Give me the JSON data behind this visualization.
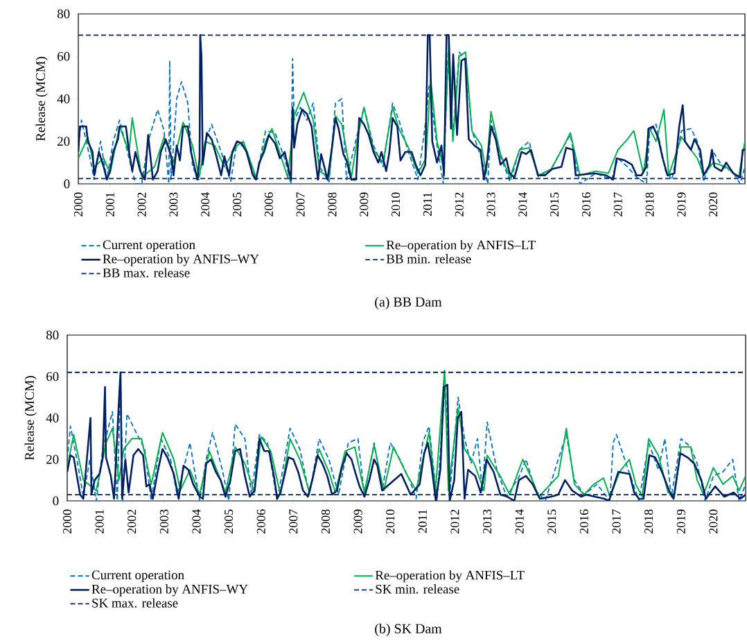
{
  "chart_data": [
    {
      "type": "line",
      "title": "(a) BB Dam",
      "ylabel": "Release (MCM)",
      "xlim": [
        2000,
        2021
      ],
      "ylim": [
        0,
        80
      ],
      "xticks": [
        2000,
        2001,
        2002,
        2003,
        2004,
        2005,
        2006,
        2007,
        2008,
        2009,
        2010,
        2011,
        2012,
        2013,
        2014,
        2015,
        2016,
        2017,
        2018,
        2019,
        2020
      ],
      "yticks": [
        0,
        20,
        40,
        60,
        80
      ],
      "legend": "bottom",
      "grid": false,
      "series": [
        {
          "name": "Current operation",
          "color": "#0070c0",
          "line_style": "dashed",
          "x": [
            2000,
            2000.1,
            2000.4,
            2000.5,
            2000.7,
            2000.9,
            2001.1,
            2001.3,
            2001.6,
            2001.8,
            2002.0,
            2002.2,
            2002.5,
            2002.7,
            2002.85,
            2002.88,
            2002.92,
            2003.1,
            2003.25,
            2003.45,
            2003.6,
            2003.8,
            2004.0,
            2004.2,
            2004.5,
            2004.8,
            2005.0,
            2005.3,
            2005.6,
            2005.9,
            2006.2,
            2006.5,
            2006.7,
            2006.75,
            2006.8,
            2007.0,
            2007.2,
            2007.4,
            2007.6,
            2007.9,
            2008.1,
            2008.3,
            2008.45,
            2008.8,
            2009.0,
            2009.3,
            2009.6,
            2009.9,
            2010.1,
            2010.4,
            2010.7,
            2010.95,
            2011.05,
            2011.3,
            2011.5,
            2011.65,
            2011.8,
            2012.0,
            2012.2,
            2012.4,
            2012.7,
            2012.9,
            2013.0,
            2013.3,
            2013.6,
            2013.9,
            2014.2,
            2014.5,
            2014.9,
            2015.3,
            2015.5,
            2015.8,
            2016.3,
            2016.8,
            2017.0,
            2017.3,
            2017.6,
            2017.9,
            2018.0,
            2018.2,
            2018.5,
            2018.7,
            2019.0,
            2019.3,
            2019.5,
            2019.7,
            2020.0,
            2020.3,
            2020.6,
            2020.85,
            2021.0
          ],
          "values": [
            18,
            30,
            10,
            2,
            20,
            2,
            20,
            30,
            12,
            0,
            0,
            20,
            35,
            25,
            0,
            58,
            2,
            40,
            48,
            38,
            8,
            2,
            20,
            28,
            15,
            1,
            20,
            16,
            2,
            25,
            24,
            12,
            0,
            59,
            30,
            36,
            30,
            38,
            8,
            1,
            38,
            40,
            2,
            24,
            36,
            18,
            8,
            38,
            30,
            15,
            2,
            30,
            46,
            18,
            0,
            62,
            22,
            62,
            58,
            25,
            12,
            0,
            30,
            13,
            1,
            16,
            20,
            3,
            7,
            18,
            23,
            0,
            5,
            2,
            12,
            8,
            3,
            0,
            25,
            28,
            6,
            2,
            25,
            26,
            20,
            1,
            15,
            8,
            6,
            0,
            8
          ]
        },
        {
          "name": "Re–operation by ANFIS–LT",
          "color": "#00b050",
          "line_style": "solid",
          "x": [
            2000,
            2000.3,
            2000.5,
            2000.8,
            2001.0,
            2001.3,
            2001.6,
            2001.7,
            2002.0,
            2002.4,
            2002.7,
            2003.0,
            2003.3,
            2003.6,
            2003.8,
            2004.0,
            2004.3,
            2004.6,
            2005.0,
            2005.2,
            2005.6,
            2005.9,
            2006.1,
            2006.4,
            2006.6,
            2006.8,
            2007.1,
            2007.4,
            2007.6,
            2007.9,
            2008.1,
            2008.3,
            2008.6,
            2008.8,
            2009.0,
            2009.3,
            2009.6,
            2009.9,
            2010.1,
            2010.4,
            2010.7,
            2010.95,
            2011.1,
            2011.3,
            2011.5,
            2011.68,
            2011.8,
            2012.0,
            2012.2,
            2012.4,
            2012.7,
            2012.85,
            2013.0,
            2013.3,
            2013.6,
            2013.9,
            2014.2,
            2014.5,
            2014.9,
            2015.3,
            2015.5,
            2015.8,
            2016.3,
            2016.7,
            2017.0,
            2017.3,
            2017.5,
            2017.8,
            2018.0,
            2018.2,
            2018.45,
            2018.6,
            2019.0,
            2019.2,
            2019.5,
            2019.7,
            2020.0,
            2020.4,
            2020.8,
            2021.0
          ],
          "values": [
            12,
            22,
            8,
            12,
            5,
            27,
            15,
            31,
            3,
            8,
            22,
            10,
            29,
            18,
            3,
            20,
            18,
            8,
            18,
            20,
            3,
            20,
            26,
            12,
            3,
            32,
            43,
            30,
            6,
            3,
            32,
            28,
            3,
            22,
            36,
            16,
            10,
            36,
            26,
            17,
            5,
            12,
            49,
            20,
            8,
            67,
            20,
            60,
            62,
            25,
            18,
            5,
            34,
            14,
            3,
            16,
            17,
            4,
            7,
            18,
            24,
            4,
            6,
            5,
            16,
            21,
            25,
            5,
            26,
            20,
            35,
            4,
            22,
            18,
            12,
            4,
            10,
            8,
            3,
            20
          ]
        },
        {
          "name": "Re–operation by ANFIS–WY",
          "color": "#002060",
          "line_style": "solid",
          "x": [
            2000.0,
            2000.05,
            2000.25,
            2000.3,
            2000.45,
            2000.5,
            2000.65,
            2000.8,
            2000.9,
            2001.0,
            2001.1,
            2001.25,
            2001.3,
            2001.5,
            2001.6,
            2001.7,
            2001.8,
            2001.95,
            2002.1,
            2002.2,
            2002.35,
            2002.5,
            2002.6,
            2002.75,
            2002.85,
            2002.95,
            2003.0,
            2003.1,
            2003.2,
            2003.3,
            2003.45,
            2003.55,
            2003.75,
            2003.82,
            2003.84,
            2003.88,
            2003.92,
            2004.05,
            2004.2,
            2004.35,
            2004.5,
            2004.6,
            2004.75,
            2004.85,
            2005.0,
            2005.15,
            2005.3,
            2005.5,
            2005.6,
            2005.7,
            2005.85,
            2006.0,
            2006.2,
            2006.35,
            2006.5,
            2006.7,
            2006.75,
            2006.8,
            2006.9,
            2007.05,
            2007.2,
            2007.35,
            2007.45,
            2007.55,
            2007.65,
            2007.85,
            2008.0,
            2008.1,
            2008.2,
            2008.35,
            2008.45,
            2008.6,
            2008.75,
            2008.85,
            2009.0,
            2009.15,
            2009.3,
            2009.45,
            2009.55,
            2009.7,
            2009.8,
            2009.9,
            2010.05,
            2010.15,
            2010.3,
            2010.5,
            2010.63,
            2010.78,
            2010.93,
            2011.01,
            2011.07,
            2011.15,
            2011.3,
            2011.44,
            2011.52,
            2011.6,
            2011.67,
            2011.74,
            2011.81,
            2011.93,
            2012.07,
            2012.19,
            2012.3,
            2012.48,
            2012.67,
            2012.78,
            2012.89,
            2013.0,
            2013.15,
            2013.3,
            2013.48,
            2013.59,
            2013.74,
            2013.96,
            2014.11,
            2014.26,
            2014.48,
            2014.7,
            2014.93,
            2015.22,
            2015.37,
            2015.59,
            2015.67,
            2016.26,
            2016.63,
            2016.85,
            2016.96,
            2017.22,
            2017.44,
            2017.59,
            2017.74,
            2017.89,
            2017.96,
            2018.11,
            2018.26,
            2018.41,
            2018.56,
            2018.78,
            2018.93,
            2019.04,
            2019.11,
            2019.3,
            2019.41,
            2019.59,
            2019.7,
            2019.89,
            2019.96,
            2020.04,
            2020.26,
            2020.41,
            2020.63,
            2020.85,
            2020.93,
            2021.0
          ],
          "values": [
            15,
            27,
            27,
            20,
            15,
            4,
            15,
            8,
            2,
            6,
            15,
            21,
            27,
            27,
            15,
            6,
            15,
            6,
            2,
            23,
            2,
            6,
            15,
            21,
            17,
            11,
            4,
            18,
            11,
            27,
            27,
            15,
            2,
            12,
            70,
            60,
            9,
            24,
            21,
            13,
            4,
            13,
            4,
            15,
            20,
            19,
            15,
            4,
            2,
            10,
            15,
            23,
            19,
            12,
            15,
            2,
            36,
            17,
            28,
            35,
            33,
            27,
            14,
            2,
            14,
            2,
            18,
            31,
            26,
            14,
            11,
            2,
            2,
            31,
            28,
            23,
            15,
            10,
            15,
            6,
            15,
            31,
            27,
            11,
            15,
            15,
            9,
            4,
            9,
            70,
            70,
            20,
            10,
            18,
            4,
            70,
            70,
            26,
            61,
            23,
            58,
            59,
            21,
            18,
            16,
            2,
            12,
            27,
            21,
            9,
            12,
            5,
            3,
            15,
            14,
            16,
            4,
            4,
            7,
            8,
            17,
            16,
            4,
            5,
            4,
            2,
            12,
            11,
            9,
            4,
            4,
            8,
            26,
            27,
            22,
            12,
            4,
            5,
            27,
            37,
            20,
            16,
            21,
            16,
            4,
            9,
            16,
            8,
            6,
            10,
            5,
            3,
            16,
            16
          ]
        },
        {
          "name": "BB min. release",
          "color": "#002060",
          "line_style": "dashed",
          "x": [
            2000,
            2021
          ],
          "values": [
            2.5,
            2.5
          ]
        },
        {
          "name": "BB max. release",
          "color": "#002060",
          "line_style": "dashed",
          "x": [
            2000,
            2021
          ],
          "values": [
            70,
            70
          ]
        }
      ]
    },
    {
      "type": "line",
      "title": "(b) SK Dam",
      "ylabel": "Release (MCM)",
      "xlim": [
        2000,
        2021
      ],
      "ylim": [
        0,
        80
      ],
      "xticks": [
        2000,
        2001,
        2002,
        2003,
        2004,
        2005,
        2006,
        2007,
        2008,
        2009,
        2010,
        2011,
        2012,
        2013,
        2014,
        2015,
        2016,
        2017,
        2018,
        2019,
        2020
      ],
      "yticks": [
        0,
        20,
        40,
        60,
        80
      ],
      "legend": "bottom",
      "grid": false,
      "series": [
        {
          "name": "Current operation",
          "color": "#0070c0",
          "line_style": "dashed",
          "x": [
            2000,
            2000.1,
            2000.3,
            2000.5,
            2000.7,
            2000.9,
            2001.1,
            2001.4,
            2001.55,
            2001.65,
            2001.72,
            2001.85,
            2002.1,
            2002.4,
            2002.6,
            2002.9,
            2003.2,
            2003.4,
            2003.8,
            2004.1,
            2004.3,
            2004.5,
            2004.8,
            2005.0,
            2005.2,
            2005.5,
            2005.7,
            2005.95,
            2006.2,
            2006.5,
            2006.9,
            2007.2,
            2007.5,
            2007.8,
            2008.1,
            2008.4,
            2008.7,
            2009.0,
            2009.2,
            2009.5,
            2009.75,
            2010.0,
            2010.3,
            2010.6,
            2010.8,
            2011.0,
            2011.2,
            2011.45,
            2011.7,
            2011.85,
            2012.1,
            2012.3,
            2012.5,
            2012.7,
            2012.85,
            2013.0,
            2013.3,
            2013.6,
            2014.0,
            2014.2,
            2014.5,
            2014.8,
            2015.2,
            2015.45,
            2015.7,
            2016.0,
            2016.4,
            2016.8,
            2016.9,
            2017.0,
            2017.3,
            2017.7,
            2018.0,
            2018.3,
            2018.5,
            2018.7,
            2019.0,
            2019.3,
            2019.5,
            2019.75,
            2020.0,
            2020.3,
            2020.6,
            2020.8,
            2021.0
          ],
          "values": [
            20,
            36,
            20,
            2,
            20,
            0,
            25,
            43,
            0,
            60,
            0,
            42,
            34,
            25,
            0,
            30,
            20,
            3,
            28,
            0,
            20,
            33,
            15,
            0,
            37,
            30,
            3,
            32,
            28,
            0,
            35,
            25,
            3,
            30,
            20,
            3,
            28,
            30,
            3,
            28,
            5,
            28,
            20,
            10,
            1,
            28,
            36,
            0,
            58,
            5,
            50,
            30,
            18,
            30,
            5,
            38,
            15,
            2,
            12,
            20,
            5,
            0,
            20,
            32,
            10,
            3,
            8,
            0,
            28,
            32,
            18,
            0,
            28,
            15,
            30,
            2,
            30,
            26,
            18,
            0,
            12,
            14,
            20,
            0,
            8
          ]
        },
        {
          "name": "Re–operation by ANFIS–LT",
          "color": "#00b050",
          "line_style": "solid",
          "x": [
            2000,
            2000.2,
            2000.5,
            2000.9,
            2001.2,
            2001.4,
            2001.6,
            2001.75,
            2002.0,
            2002.3,
            2002.6,
            2002.95,
            2003.3,
            2003.5,
            2003.8,
            2004.1,
            2004.4,
            2004.7,
            2004.9,
            2005.2,
            2005.5,
            2005.8,
            2006.0,
            2006.3,
            2006.6,
            2006.9,
            2007.2,
            2007.5,
            2007.8,
            2008.1,
            2008.3,
            2008.6,
            2008.9,
            2009.2,
            2009.5,
            2009.8,
            2010.1,
            2010.5,
            2010.8,
            2011.2,
            2011.4,
            2011.68,
            2011.8,
            2012.1,
            2012.3,
            2012.6,
            2012.9,
            2013.0,
            2013.4,
            2013.7,
            2014.1,
            2014.4,
            2014.6,
            2015.2,
            2015.45,
            2015.7,
            2016.0,
            2016.3,
            2016.6,
            2016.8,
            2017.1,
            2017.4,
            2017.6,
            2017.8,
            2018.0,
            2018.3,
            2018.6,
            2018.8,
            2019.0,
            2019.3,
            2019.5,
            2019.7,
            2020.0,
            2020.3,
            2020.6,
            2020.8,
            2021.0
          ],
          "values": [
            16,
            32,
            10,
            5,
            28,
            35,
            10,
            25,
            30,
            30,
            8,
            33,
            20,
            5,
            15,
            3,
            24,
            12,
            4,
            26,
            18,
            4,
            31,
            24,
            3,
            30,
            20,
            4,
            25,
            14,
            4,
            24,
            26,
            4,
            27,
            5,
            26,
            13,
            5,
            33,
            5,
            63,
            5,
            45,
            25,
            18,
            5,
            22,
            12,
            3,
            20,
            10,
            2,
            12,
            35,
            8,
            3,
            8,
            11,
            2,
            14,
            20,
            8,
            2,
            30,
            22,
            4,
            3,
            26,
            26,
            10,
            3,
            16,
            8,
            12,
            5,
            12
          ]
        },
        {
          "name": "Re–operation by ANFIS–WY",
          "color": "#002060",
          "line_style": "solid",
          "x": [
            2000.0,
            2000.1,
            2000.2,
            2000.3,
            2000.4,
            2000.5,
            2000.72,
            2000.75,
            2000.85,
            2001.0,
            2001.1,
            2001.17,
            2001.2,
            2001.35,
            2001.45,
            2001.62,
            2001.65,
            2001.7,
            2001.8,
            2001.9,
            2002.05,
            2002.2,
            2002.35,
            2002.45,
            2002.55,
            2002.65,
            2002.8,
            2002.95,
            2003.1,
            2003.3,
            2003.45,
            2003.6,
            2003.75,
            2003.9,
            2004.1,
            2004.2,
            2004.3,
            2004.45,
            2004.6,
            2004.75,
            2004.9,
            2005.05,
            2005.2,
            2005.35,
            2005.5,
            2005.65,
            2005.8,
            2005.95,
            2006.1,
            2006.25,
            2006.4,
            2006.5,
            2006.6,
            2006.75,
            2006.85,
            2007.0,
            2007.15,
            2007.3,
            2007.45,
            2007.6,
            2007.75,
            2007.9,
            2008.05,
            2008.2,
            2008.35,
            2008.5,
            2008.65,
            2008.8,
            2008.95,
            2009.05,
            2009.2,
            2009.35,
            2009.5,
            2009.6,
            2009.75,
            2010.34,
            2010.63,
            2010.91,
            2011.05,
            2011.16,
            2011.27,
            2011.41,
            2011.55,
            2011.66,
            2011.77,
            2011.84,
            2011.98,
            2012.09,
            2012.2,
            2012.3,
            2012.41,
            2012.63,
            2012.8,
            2012.98,
            2013.2,
            2013.41,
            2013.63,
            2013.84,
            2013.98,
            2014.2,
            2014.41,
            2014.63,
            2014.98,
            2015.2,
            2015.41,
            2015.63,
            2015.91,
            2016.06,
            2016.34,
            2016.63,
            2016.77,
            2017.06,
            2017.41,
            2017.55,
            2017.7,
            2017.84,
            2018.02,
            2018.2,
            2018.41,
            2018.63,
            2018.77,
            2018.98,
            2019.2,
            2019.41,
            2019.63,
            2019.77,
            2020.06,
            2020.34,
            2020.63,
            2020.84,
            2021.0
          ],
          "values": [
            14,
            22,
            21,
            12,
            3,
            1,
            40,
            3,
            10,
            13,
            21,
            55,
            21,
            12,
            1,
            54,
            62,
            1,
            20,
            4,
            22,
            25,
            22,
            7,
            8,
            1,
            14,
            25,
            21,
            13,
            1,
            17,
            15,
            8,
            2,
            1,
            18,
            20,
            14,
            10,
            2,
            10,
            24,
            25,
            12,
            2,
            5,
            30,
            24,
            24,
            12,
            1,
            4,
            14,
            21,
            20,
            14,
            5,
            2,
            11,
            22,
            18,
            12,
            3,
            5,
            16,
            23,
            20,
            12,
            7,
            2,
            10,
            20,
            17,
            5,
            13,
            3,
            8,
            23,
            28,
            18,
            0,
            15,
            55,
            56,
            0,
            10,
            40,
            43,
            1,
            15,
            12,
            4,
            20,
            14,
            3,
            2,
            0,
            10,
            12,
            8,
            1,
            2,
            3,
            10,
            5,
            2,
            3,
            2,
            1,
            0,
            14,
            13,
            4,
            1,
            1,
            22,
            21,
            14,
            5,
            1,
            23,
            21,
            18,
            10,
            1,
            7,
            2,
            4,
            1,
            3
          ]
        },
        {
          "name": "SK min. release",
          "color": "#002060",
          "line_style": "dashed",
          "x": [
            2000,
            2021
          ],
          "values": [
            3,
            3
          ]
        },
        {
          "name": "SK max. release",
          "color": "#002060",
          "line_style": "dashed",
          "x": [
            2000,
            2021
          ],
          "values": [
            62,
            62
          ]
        }
      ]
    }
  ]
}
